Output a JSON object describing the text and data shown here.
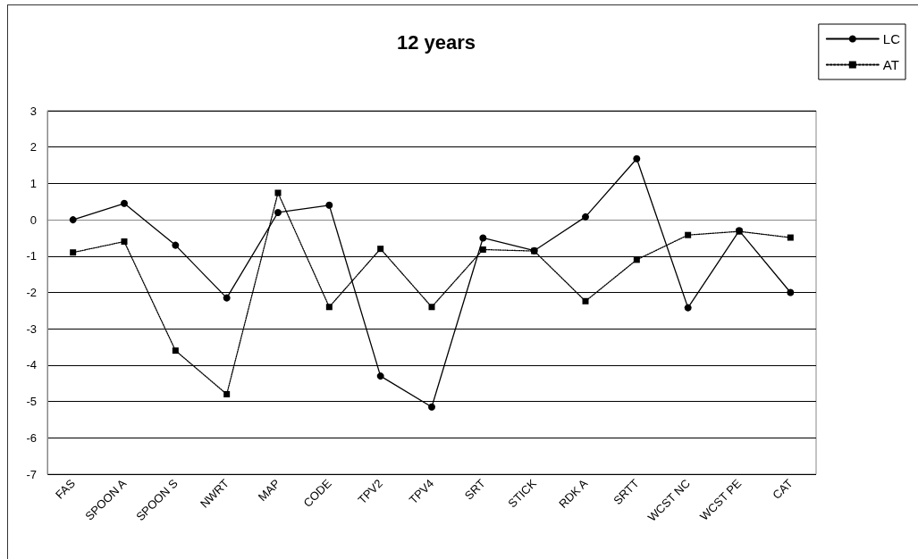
{
  "chart_data": {
    "type": "line",
    "title": "12 years",
    "categories": [
      "FAS",
      "SPOON A",
      "SPOON S",
      "NWRT",
      "MAP",
      "CODE",
      "TPV2",
      "TPV4",
      "SRT",
      "STICK",
      "RDK A",
      "SRTT",
      "WCST NC",
      "WCST PE",
      "CAT"
    ],
    "series": [
      {
        "name": "LC",
        "color": "#000000",
        "marker": "circle",
        "line_style": "solid",
        "values": [
          0.0,
          0.45,
          -0.7,
          -2.15,
          0.2,
          0.4,
          -4.3,
          -5.15,
          -0.5,
          -0.85,
          0.08,
          1.68,
          -2.42,
          -0.3,
          -2.0
        ]
      },
      {
        "name": "AT",
        "color": "#000000",
        "marker": "square",
        "line_style": "dotted",
        "values": [
          -0.9,
          -0.6,
          -3.6,
          -4.8,
          0.74,
          -2.4,
          -0.8,
          -2.4,
          -0.82,
          -0.86,
          -2.24,
          -1.1,
          -0.42,
          -0.32,
          -0.49
        ]
      }
    ],
    "ylim": [
      -7,
      3
    ],
    "yticks": [
      -7,
      -6,
      -5,
      -4,
      -3,
      -2,
      -1,
      0,
      1,
      2,
      3
    ],
    "grid": "y",
    "legend": "top right"
  }
}
